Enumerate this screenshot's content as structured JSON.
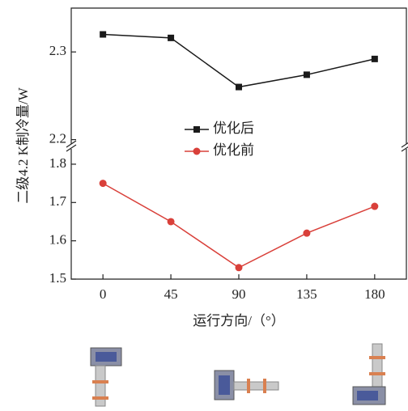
{
  "chart_data": [
    {
      "type": "line",
      "x": [
        0,
        45,
        90,
        135,
        180
      ],
      "xlim": [
        -21,
        201
      ],
      "ylim": [
        2.195,
        2.35
      ],
      "yticks": [
        2.2,
        2.3
      ],
      "series": [
        {
          "name": "优化后",
          "color": "#1a1a1a",
          "marker": "square",
          "values": [
            2.32,
            2.316,
            2.26,
            2.274,
            2.292
          ]
        }
      ]
    },
    {
      "type": "line",
      "x": [
        0,
        45,
        90,
        135,
        180
      ],
      "xlim": [
        -21,
        201
      ],
      "xticks": [
        0,
        45,
        90,
        135,
        180
      ],
      "ylim": [
        1.5,
        1.84
      ],
      "yticks": [
        1.5,
        1.6,
        1.7,
        1.8
      ],
      "xlabel": "运行方向/（°）",
      "ylabel": "二级4.2 K制冷量/W",
      "series": [
        {
          "name": "优化前",
          "color": "#d9403a",
          "marker": "circle",
          "values": [
            1.75,
            1.65,
            1.53,
            1.62,
            1.69
          ]
        }
      ]
    }
  ]
}
